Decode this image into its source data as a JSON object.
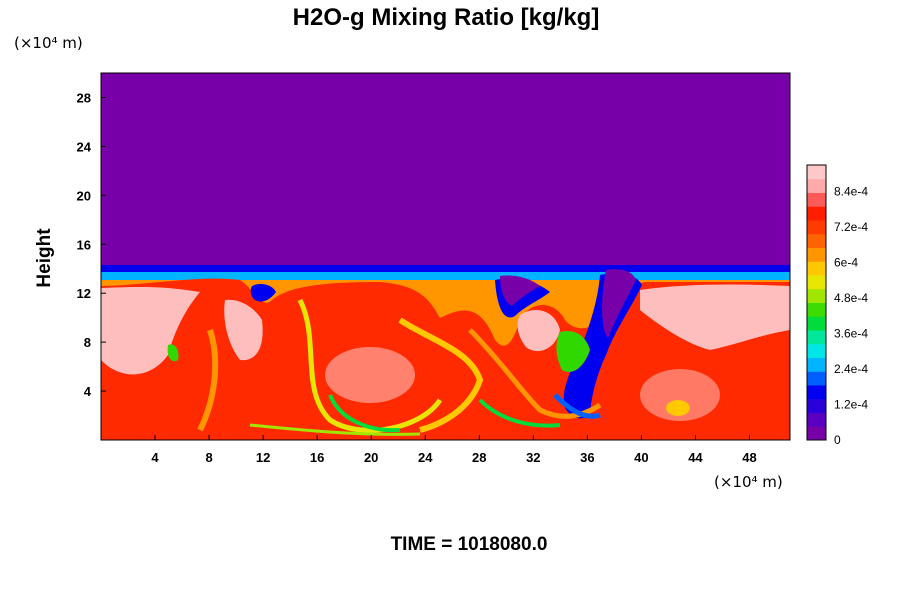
{
  "chart_data": {
    "type": "heatmap",
    "title": "H2O-g Mixing Ratio [kg/kg]",
    "ylabel": "Height",
    "x_unit": "(×10⁴ m)",
    "y_unit": "(×10⁴ m)",
    "x_ticks": [
      "4",
      "8",
      "12",
      "16",
      "20",
      "24",
      "28",
      "32",
      "36",
      "40",
      "44",
      "48"
    ],
    "y_ticks": [
      "4",
      "8",
      "12",
      "16",
      "20",
      "24",
      "28"
    ],
    "xlim": [
      0,
      51
    ],
    "ylim": [
      0,
      30
    ],
    "colorbar_ticks": [
      "0",
      "1.2e-4",
      "2.4e-4",
      "3.6e-4",
      "4.8e-4",
      "6e-4",
      "7.2e-4",
      "8.4e-4"
    ],
    "colorbar_values": [
      0,
      0.00012,
      0.00024,
      0.00036,
      0.00048,
      0.0006,
      0.00072,
      0.00084
    ],
    "colorbar_range": [
      0,
      0.00093
    ],
    "colorbar_colors": [
      "#7800a8",
      "#5a00c0",
      "#2a00d8",
      "#0000f0",
      "#0060ff",
      "#00b4ff",
      "#00e6e6",
      "#00e69a",
      "#00dc3c",
      "#3cdc00",
      "#a0e600",
      "#e6e600",
      "#ffc800",
      "#ff9600",
      "#ff6400",
      "#ff3c00",
      "#ff1e00",
      "#ff5a5a",
      "#ffaaaa",
      "#ffc8c8"
    ],
    "background_value": 0,
    "moist_layer_top": 14,
    "time_label": "TIME = 1018080.0"
  }
}
